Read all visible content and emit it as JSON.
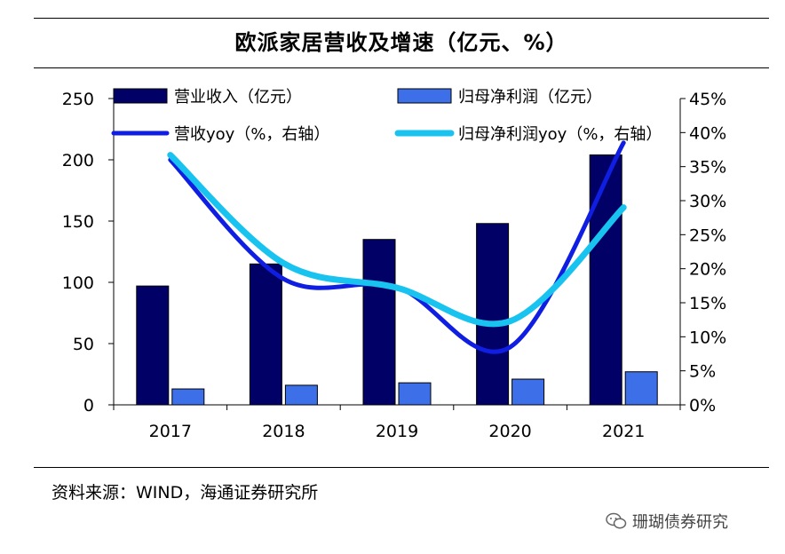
{
  "title": "欧派家居营收及增速（亿元、%）",
  "source": "资料来源：WIND，海通证券研究所",
  "watermark": {
    "icon": "wechat-icon",
    "text": "珊瑚债券研究"
  },
  "chart_data": {
    "type": "bar+line",
    "title": "欧派家居营收及增速（亿元、%）",
    "categories": [
      "2017",
      "2018",
      "2019",
      "2020",
      "2021"
    ],
    "left_axis": {
      "min": 0,
      "max": 250,
      "step": 50,
      "ticks": [
        "0",
        "50",
        "100",
        "150",
        "200",
        "250"
      ]
    },
    "right_axis": {
      "min": 0,
      "max": 45,
      "step": 5,
      "ticks": [
        "0%",
        "5%",
        "10%",
        "15%",
        "20%",
        "25%",
        "30%",
        "35%",
        "40%",
        "45%"
      ]
    },
    "series": [
      {
        "name": "营业收入（亿元）",
        "type": "bar",
        "axis": "left",
        "color": "#000066",
        "values": [
          97,
          115,
          135,
          148,
          204
        ]
      },
      {
        "name": "归母净利润（亿元）",
        "type": "bar",
        "axis": "left",
        "color": "#3D6FE8",
        "values": [
          13,
          16,
          18,
          21,
          27
        ]
      },
      {
        "name": "营收yoy（%，右轴）",
        "type": "line",
        "axis": "right",
        "color": "#0F1EE0",
        "values": [
          36.0,
          18.5,
          17.3,
          8.5,
          38.5
        ]
      },
      {
        "name": "归母净利润yoy（%，右轴）",
        "type": "line",
        "axis": "right",
        "color": "#19C3F0",
        "values": [
          36.7,
          20.8,
          17.2,
          12.3,
          29.0
        ]
      }
    ],
    "legend_position": "top"
  }
}
